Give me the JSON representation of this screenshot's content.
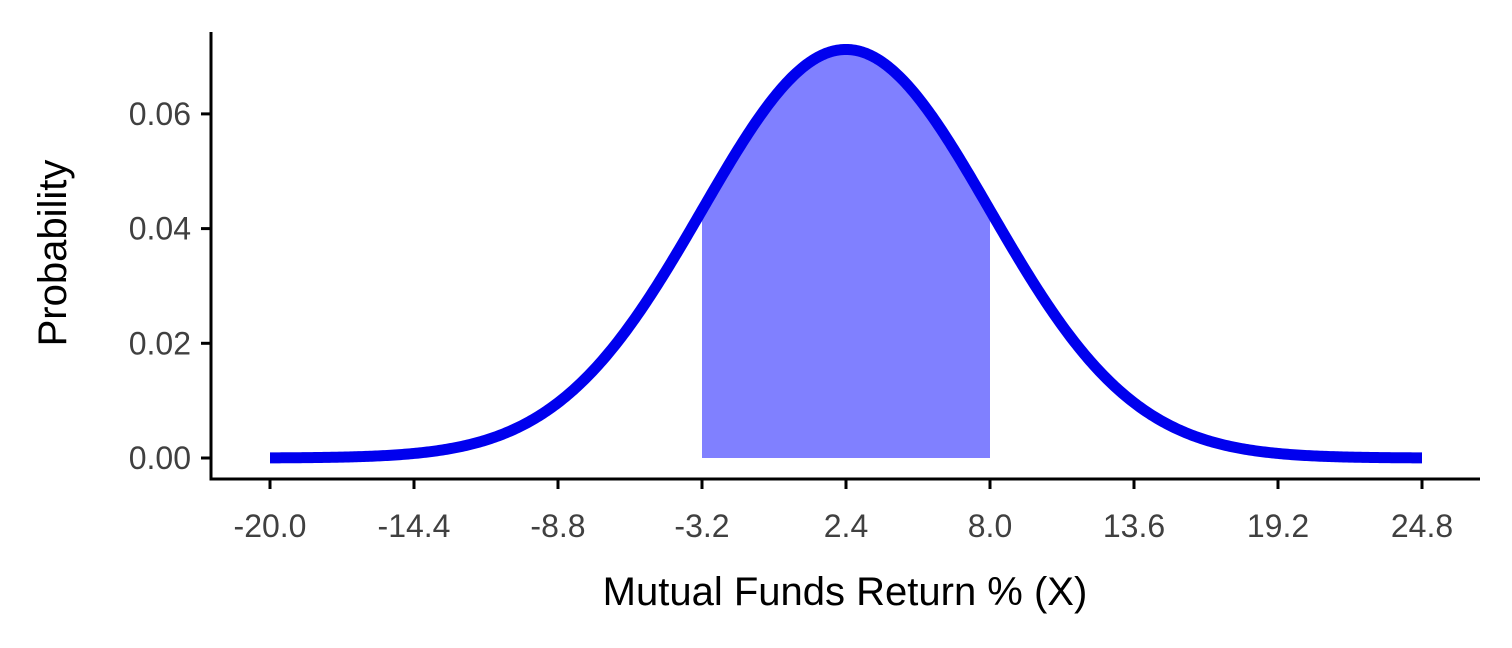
{
  "chart_data": {
    "type": "area",
    "title": "",
    "xlabel": "Mutual Funds Return % (X)",
    "ylabel": "Probability",
    "xlim": [
      -20.0,
      24.8
    ],
    "ylim": [
      0,
      0.0715
    ],
    "x_ticks": [
      "-20.0",
      "-14.4",
      "-8.8",
      "-3.2",
      "2.4",
      "8.0",
      "13.6",
      "19.2",
      "24.8"
    ],
    "y_ticks": [
      "0.00",
      "0.02",
      "0.04",
      "0.06"
    ],
    "distribution": {
      "name": "normal",
      "mean": 2.4,
      "sd": 5.6
    },
    "shaded_region": {
      "from": -3.2,
      "to": 8.0
    },
    "grid": false,
    "colors": {
      "curve": "#0000ee",
      "fill": "#8080ff",
      "axis": "#000000",
      "tick_text": "#404040"
    }
  }
}
